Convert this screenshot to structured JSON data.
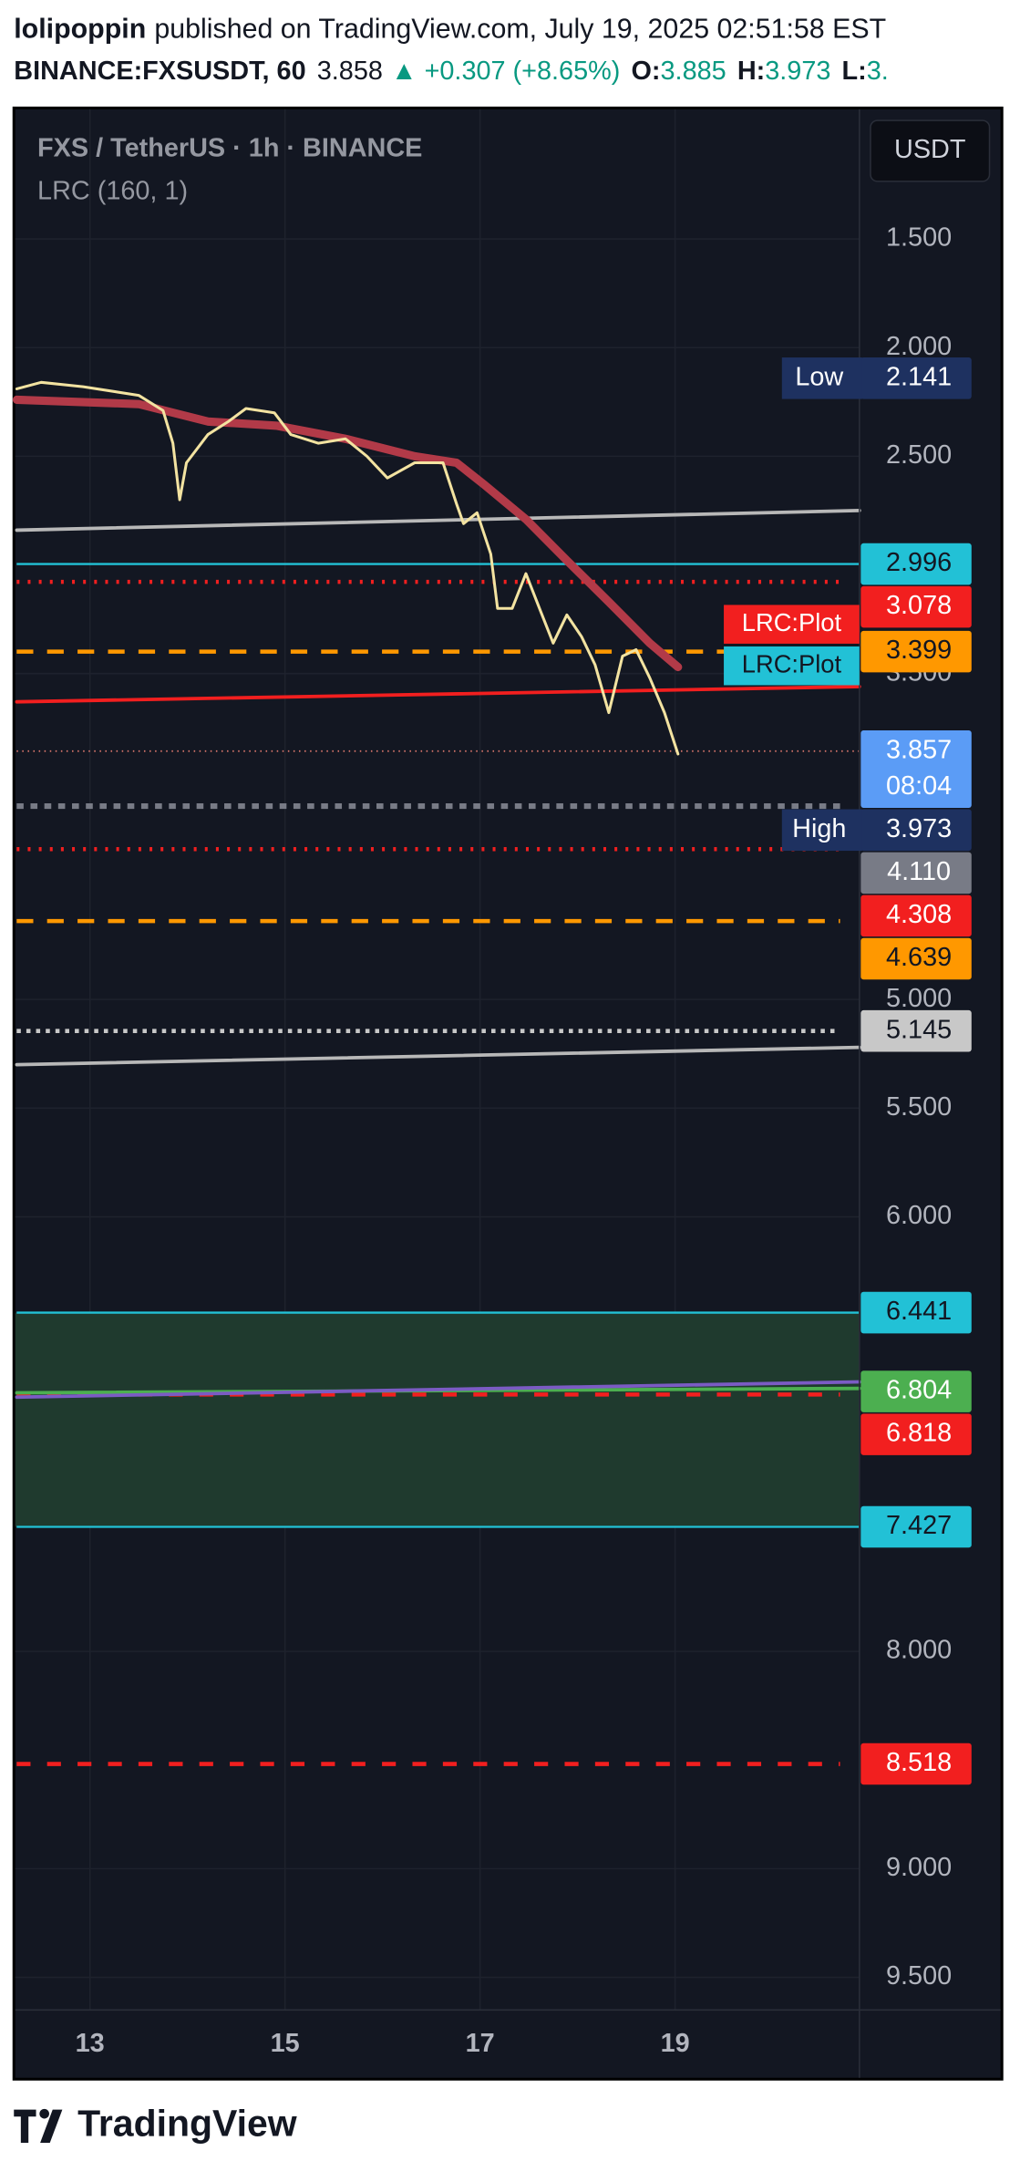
{
  "header": {
    "author": "lolipoppin",
    "published": "published on TradingView.com, July 19, 2025 02:51:58 EST",
    "symbol": "BINANCE:FXSUSDT, 60",
    "last": "3.858",
    "change": "▲ +0.307 (+8.65%)",
    "open_label": "O:",
    "open": "3.885",
    "high_label": "H:",
    "high": "3.973",
    "low_label": "L:",
    "low": "3."
  },
  "currency_button": "USDT",
  "chart_data": {
    "type": "line",
    "title": "FXS / TetherUS · 1h · BINANCE",
    "inverted": true,
    "xlim": [
      12.22,
      20.89
    ],
    "xticks": [
      13,
      15,
      17,
      19
    ],
    "ylim": [
      0.91,
      9.65
    ],
    "yticks": [
      {
        "value": 1.5,
        "label": "1.500"
      },
      {
        "value": 2,
        "label": "2.000"
      },
      {
        "value": 2.5,
        "label": "2.500"
      },
      {
        "value": 3.5,
        "label": "3.500"
      },
      {
        "value": 5,
        "label": "5.000"
      },
      {
        "value": 5.5,
        "label": "5.500"
      },
      {
        "value": 6,
        "label": "6.000"
      },
      {
        "value": 8,
        "label": "8.000"
      },
      {
        "value": 9,
        "label": "9.000"
      },
      {
        "value": 9.5,
        "label": "9.500"
      }
    ],
    "grid": true,
    "series": [
      {
        "color": "#f3e3a1",
        "x": [
          12.25,
          12.5,
          12.93,
          13.5,
          13.75,
          13.85,
          13.92,
          13.99,
          14.21,
          14.42,
          14.6,
          14.89,
          15.06,
          15.34,
          15.62,
          15.84,
          16.05,
          16.33,
          16.62,
          16.76,
          16.83,
          16.97,
          17.11,
          17.18,
          17.33,
          17.47,
          17.61,
          17.75,
          17.89,
          18.04,
          18.18,
          18.32,
          18.46,
          18.6,
          18.74,
          18.89,
          19.03
        ],
        "values": [
          2.19,
          2.16,
          2.18,
          2.22,
          2.29,
          2.44,
          2.7,
          2.53,
          2.4,
          2.34,
          2.28,
          2.3,
          2.4,
          2.44,
          2.42,
          2.5,
          2.6,
          2.53,
          2.53,
          2.72,
          2.81,
          2.76,
          2.95,
          3.2,
          3.2,
          3.04,
          3.2,
          3.36,
          3.23,
          3.33,
          3.46,
          3.68,
          3.42,
          3.39,
          3.52,
          3.68,
          3.87
        ]
      },
      {
        "name": "LRC (160, 1)",
        "color": "#b23a48",
        "x": [
          12.25,
          13.5,
          14.21,
          14.92,
          15.62,
          16.33,
          16.76,
          17.04,
          17.47,
          17.89,
          18.32,
          18.74,
          19.03
        ],
        "values": [
          2.24,
          2.26,
          2.34,
          2.36,
          2.42,
          2.5,
          2.53,
          2.63,
          2.79,
          2.98,
          3.17,
          3.36,
          3.47
        ]
      }
    ],
    "trendlines": [
      {
        "color": "#b8b8b8",
        "x": [
          12.25,
          20.89
        ],
        "values": [
          2.84,
          2.75
        ]
      },
      {
        "color": "#b8b8b8",
        "x": [
          12.25,
          20.89
        ],
        "values": [
          5.3,
          5.22
        ]
      },
      {
        "color": "#f21f1f",
        "x": [
          12.25,
          20.89
        ],
        "values": [
          3.63,
          3.56
        ]
      },
      {
        "color": "#4caf50",
        "x": [
          12.25,
          20.89
        ],
        "values": [
          6.81,
          6.79
        ]
      },
      {
        "color": "#7b5bc4",
        "x": [
          12.25,
          20.89
        ],
        "values": [
          6.83,
          6.76
        ]
      }
    ],
    "zone": [
      6.441,
      7.427
    ],
    "zone_color": "#1f3a2e",
    "levels": [
      {
        "price": 2.141,
        "name": "Low",
        "color": "#1e3160",
        "text_color": "#ffffff",
        "style": "none"
      },
      {
        "price": 2.996,
        "color": "#22c1d6",
        "text_color": "#131722",
        "style": "solid"
      },
      {
        "price": 3.078,
        "color": "#f21f1f",
        "text_color": "#ffffff",
        "style": "dotted"
      },
      {
        "price": 3.399,
        "color": "#ff9800",
        "text_color": "#131722",
        "style": "dashed"
      },
      {
        "price": 3.857,
        "sub": "08:04",
        "color": "#5b9cf6",
        "text_color": "#ffffff",
        "style": "fine",
        "line_color": "#e0796e"
      },
      {
        "price": 3.973,
        "name": "High",
        "color": "#1e3160",
        "text_color": "#ffffff",
        "style": "none"
      },
      {
        "price": 4.11,
        "price_label": "4.110",
        "color": "#787b86",
        "text_color": "#ffffff",
        "style": "dotted-thick"
      },
      {
        "price": 4.308,
        "color": "#f21f1f",
        "text_color": "#ffffff",
        "style": "dotted"
      },
      {
        "price": 4.639,
        "color": "#ff9800",
        "text_color": "#131722",
        "style": "dashed"
      },
      {
        "price": 5.145,
        "color": "#c8c8c8",
        "text_color": "#131722",
        "style": "dotted-white"
      },
      {
        "price": 6.441,
        "color": "#22c1d6",
        "text_color": "#131722",
        "style": "solid"
      },
      {
        "price": 6.804,
        "color": "#4caf50",
        "text_color": "#ffffff",
        "style": "none"
      },
      {
        "price": 6.818,
        "color": "#f21f1f",
        "text_color": "#ffffff",
        "style": "dashed-red"
      },
      {
        "price": 7.427,
        "color": "#22c1d6",
        "text_color": "#131722",
        "style": "solid"
      },
      {
        "price": 8.518,
        "color": "#f21f1f",
        "text_color": "#ffffff",
        "style": "dashed-red"
      }
    ],
    "annotations": [
      {
        "text": "LRC:Plot",
        "color": "#f21f1f"
      },
      {
        "text": "LRC:Plot",
        "color": "#22c1d6"
      }
    ]
  },
  "footer": {
    "brand": "TradingView"
  }
}
